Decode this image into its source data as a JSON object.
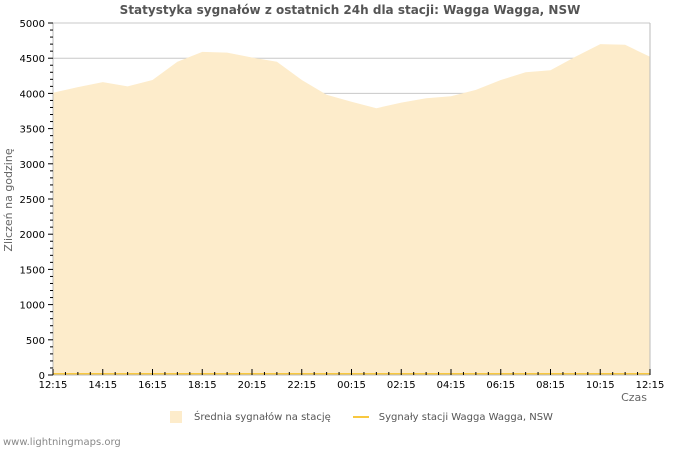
{
  "title": "Statystyka sygnałów z ostatnich 24h dla stacji: Wagga Wagga, NSW",
  "footer": "www.lightningmaps.org",
  "legend": {
    "average_label": "Średnia sygnałów na stację",
    "station_label": "Sygnały stacji Wagga Wagga, NSW"
  },
  "colors": {
    "average_fill": "#fdeccb",
    "station_line": "#f8c840",
    "grid": "#c8c8c8",
    "axis": "#bbbbbb"
  },
  "chart_data": {
    "type": "area",
    "title": "Statystyka sygnałów z ostatnich 24h dla stacji: Wagga Wagga, NSW",
    "xlabel": "Czas",
    "ylabel": "Zliczeń na godzinę",
    "ylim": [
      0,
      5000
    ],
    "yticks": [
      0,
      500,
      1000,
      1500,
      2000,
      2500,
      3000,
      3500,
      4000,
      4500,
      5000
    ],
    "xticks": [
      "12:15",
      "14:15",
      "16:15",
      "18:15",
      "20:15",
      "22:15",
      "00:15",
      "02:15",
      "04:15",
      "06:15",
      "08:15",
      "10:15",
      "12:15"
    ],
    "grid": true,
    "legend_position": "bottom",
    "x": [
      "12:15",
      "13:15",
      "14:15",
      "15:15",
      "16:15",
      "17:15",
      "18:15",
      "19:15",
      "20:15",
      "21:15",
      "22:15",
      "23:15",
      "00:15",
      "01:15",
      "02:15",
      "03:15",
      "04:15",
      "05:15",
      "06:15",
      "07:15",
      "08:15",
      "09:15",
      "10:15",
      "11:15",
      "12:15"
    ],
    "series": [
      {
        "name": "Średnia sygnałów na stację",
        "style": "area",
        "values": [
          4010,
          4090,
          4160,
          4100,
          4190,
          4450,
          4590,
          4580,
          4510,
          4450,
          4190,
          3980,
          3880,
          3790,
          3870,
          3930,
          3960,
          4050,
          4190,
          4300,
          4330,
          4520,
          4700,
          4690,
          4520
        ]
      },
      {
        "name": "Sygnały stacji Wagga Wagga, NSW",
        "style": "line",
        "values": [
          0,
          0,
          0,
          0,
          0,
          0,
          0,
          0,
          0,
          0,
          0,
          0,
          0,
          0,
          0,
          0,
          0,
          0,
          0,
          0,
          0,
          0,
          0,
          0,
          0
        ]
      }
    ]
  }
}
